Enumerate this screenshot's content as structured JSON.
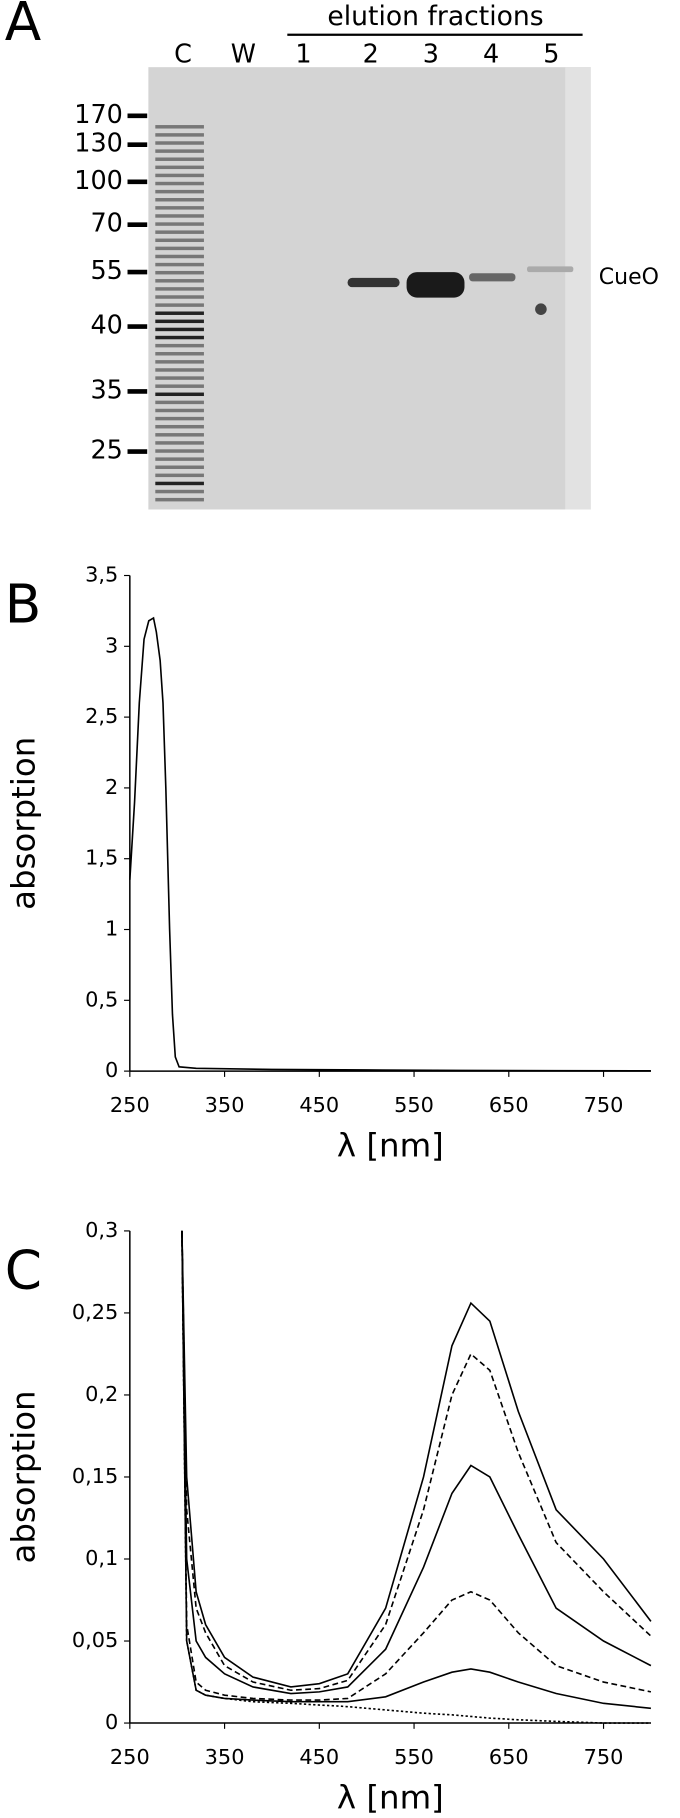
{
  "gel": {
    "panel": "A",
    "header": "elution fractions",
    "lanes": [
      "C",
      "W",
      "1",
      "2",
      "3",
      "4",
      "5"
    ],
    "markers": [
      "170",
      "130",
      "100",
      "70",
      "55",
      "40",
      "35",
      "25"
    ],
    "band_label": "CueO"
  },
  "chart_data": [
    {
      "type": "line",
      "panel": "B",
      "xlabel": "λ [nm]",
      "ylabel": "absorption",
      "x": [
        250,
        255,
        260,
        265,
        270,
        275,
        278,
        282,
        285,
        288,
        292,
        295,
        298,
        302,
        320,
        400,
        500,
        600,
        700,
        800
      ],
      "series": [
        {
          "color": "#000000",
          "dash": "solid",
          "values": [
            1.35,
            1.9,
            2.6,
            3.05,
            3.18,
            3.2,
            3.1,
            2.9,
            2.6,
            2.0,
            1.0,
            0.4,
            0.1,
            0.03,
            0.02,
            0.012,
            0.008,
            0.005,
            0.003,
            0.002
          ]
        }
      ],
      "xlim": [
        250,
        800
      ],
      "xticks": [
        250,
        350,
        450,
        550,
        650,
        750
      ],
      "ylim": [
        0,
        3.5
      ],
      "yticks": [
        0,
        {
          "value": 0.5,
          "label": "0,5"
        },
        1,
        {
          "value": 1.5,
          "label": "1,5"
        },
        2,
        {
          "value": 2.5,
          "label": "2,5"
        },
        3,
        {
          "value": 3.5,
          "label": "3,5"
        }
      ]
    },
    {
      "type": "line",
      "panel": "C",
      "xlabel": "λ [nm]",
      "ylabel": "absorption",
      "x": [
        305,
        310,
        320,
        330,
        350,
        380,
        420,
        450,
        480,
        520,
        560,
        590,
        610,
        630,
        660,
        700,
        750,
        800
      ],
      "series": [
        {
          "color": "#000000",
          "dash": "solid",
          "values": [
            0.3,
            0.15,
            0.08,
            0.06,
            0.04,
            0.028,
            0.022,
            0.024,
            0.03,
            0.07,
            0.15,
            0.23,
            0.256,
            0.245,
            0.19,
            0.13,
            0.1,
            0.062
          ]
        },
        {
          "color": "#000000",
          "dash": "dashed",
          "values": [
            0.3,
            0.13,
            0.07,
            0.055,
            0.035,
            0.025,
            0.02,
            0.021,
            0.026,
            0.06,
            0.13,
            0.2,
            0.225,
            0.215,
            0.165,
            0.11,
            0.08,
            0.053
          ]
        },
        {
          "color": "#000000",
          "dash": "solid",
          "values": [
            0.3,
            0.1,
            0.05,
            0.04,
            0.03,
            0.022,
            0.018,
            0.019,
            0.022,
            0.045,
            0.095,
            0.14,
            0.157,
            0.15,
            0.115,
            0.07,
            0.05,
            0.035
          ]
        },
        {
          "color": "#000000",
          "dash": "dashed",
          "values": [
            0.3,
            0.06,
            0.025,
            0.02,
            0.017,
            0.015,
            0.014,
            0.014,
            0.015,
            0.03,
            0.055,
            0.075,
            0.08,
            0.075,
            0.055,
            0.035,
            0.025,
            0.019
          ]
        },
        {
          "color": "#000000",
          "dash": "solid",
          "values": [
            0.3,
            0.05,
            0.02,
            0.017,
            0.015,
            0.014,
            0.013,
            0.013,
            0.013,
            0.016,
            0.025,
            0.031,
            0.033,
            0.031,
            0.025,
            0.018,
            0.012,
            0.009
          ]
        },
        {
          "color": "#000000",
          "dash": "dotted",
          "values": [
            0.3,
            0.05,
            0.02,
            0.017,
            0.015,
            0.013,
            0.012,
            0.011,
            0.01,
            0.008,
            0.006,
            0.005,
            0.004,
            0.003,
            0.002,
            0.001,
            0,
            0
          ]
        }
      ],
      "xlim": [
        250,
        800
      ],
      "xticks": [
        250,
        350,
        450,
        550,
        650,
        750
      ],
      "ylim": [
        0,
        0.3
      ],
      "yticks": [
        0,
        {
          "value": 0.05,
          "label": "0,05"
        },
        {
          "value": 0.1,
          "label": "0,1"
        },
        {
          "value": 0.15,
          "label": "0,15"
        },
        {
          "value": 0.2,
          "label": "0,2"
        },
        {
          "value": 0.25,
          "label": "0,25"
        },
        {
          "value": 0.3,
          "label": "0,3"
        }
      ]
    }
  ]
}
